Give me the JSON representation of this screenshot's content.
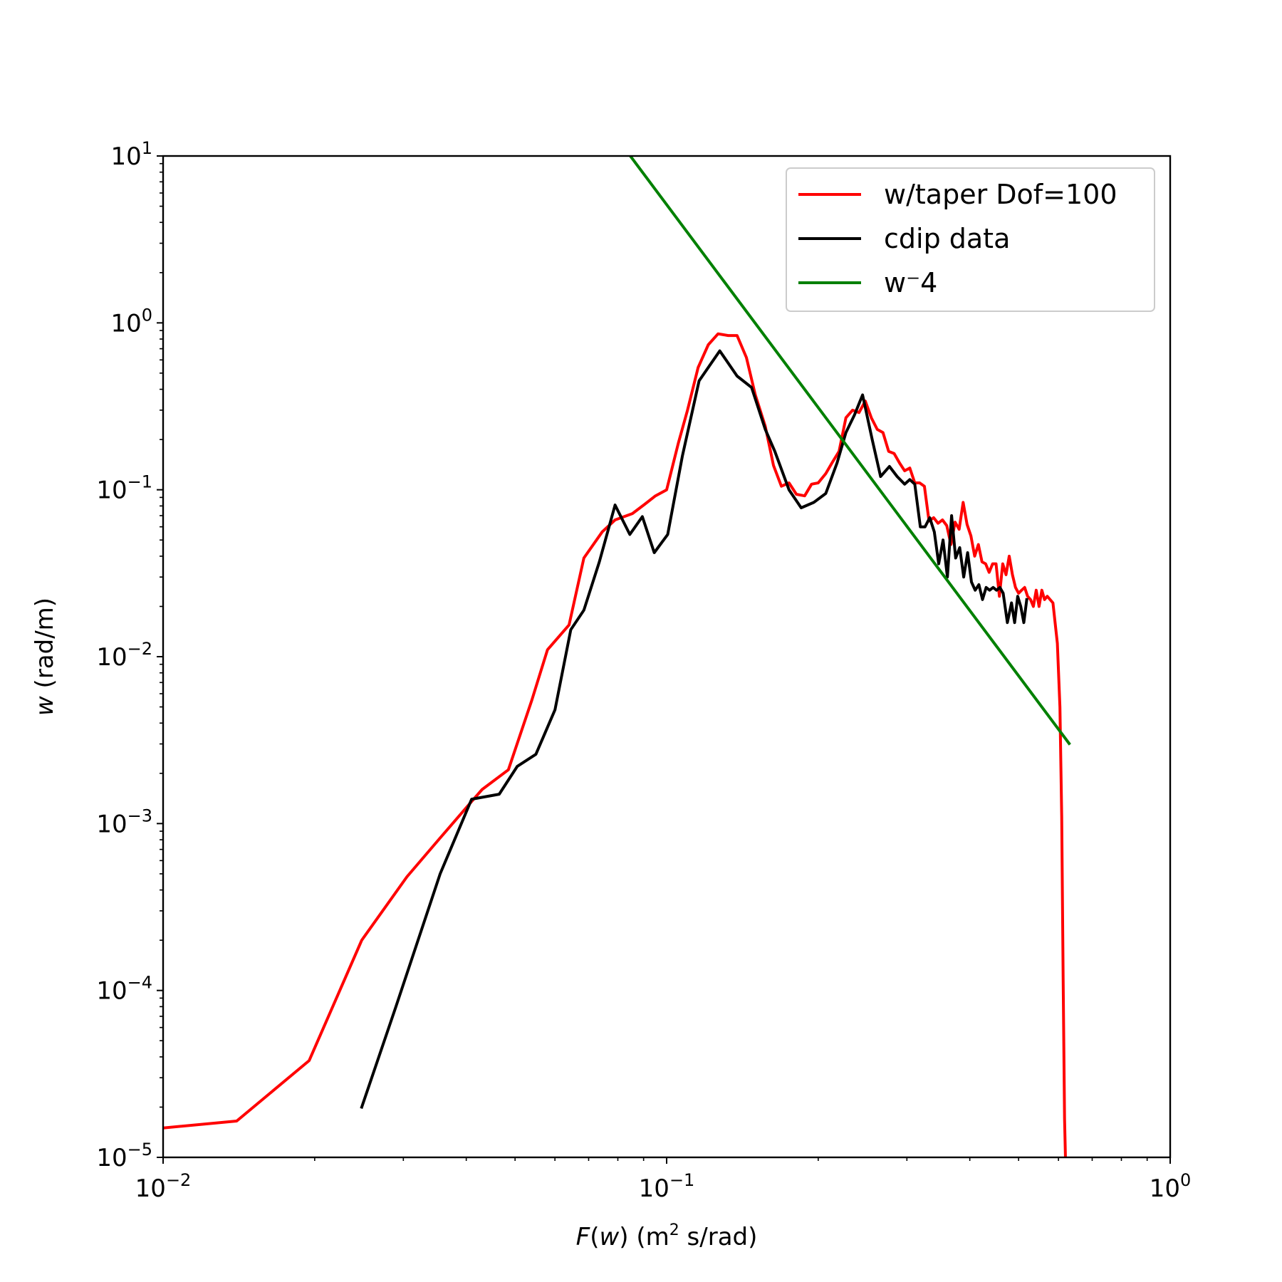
{
  "chart_data": {
    "type": "line",
    "xscale": "log",
    "yscale": "log",
    "xlim": [
      0.01,
      1
    ],
    "ylim": [
      1e-05,
      10
    ],
    "xticks": [
      {
        "value": 0.01,
        "base": "10",
        "exp": "−2"
      },
      {
        "value": 0.1,
        "base": "10",
        "exp": "−1"
      },
      {
        "value": 1,
        "base": "10",
        "exp": "0"
      }
    ],
    "yticks": [
      {
        "value": 1e-05,
        "base": "10",
        "exp": "−5"
      },
      {
        "value": 0.0001,
        "base": "10",
        "exp": "−4"
      },
      {
        "value": 0.001,
        "base": "10",
        "exp": "−3"
      },
      {
        "value": 0.01,
        "base": "10",
        "exp": "−2"
      },
      {
        "value": 0.1,
        "base": "10",
        "exp": "−1"
      },
      {
        "value": 1,
        "base": "10",
        "exp": "0"
      },
      {
        "value": 10,
        "base": "10",
        "exp": "1"
      }
    ],
    "xlabel": {
      "italic": "F",
      "paren": "(",
      "italic2": "w",
      "rest": ") (m",
      "sup": "2",
      "rest2": " s/rad)"
    },
    "ylabel": {
      "italic": "w",
      "rest": " (rad/m)"
    },
    "legend_position": "upper-right",
    "series": [
      {
        "name": "w/taper Dof=100",
        "color": "#ff0000",
        "points": [
          [
            0.01,
            1.5e-05
          ],
          [
            0.014,
            1.65e-05
          ],
          [
            0.0195,
            3.8e-05
          ],
          [
            0.0248,
            0.0002
          ],
          [
            0.0305,
            0.00048
          ],
          [
            0.0355,
            0.00082
          ],
          [
            0.0405,
            0.0013
          ],
          [
            0.043,
            0.0016
          ],
          [
            0.0485,
            0.0021
          ],
          [
            0.054,
            0.0055
          ],
          [
            0.058,
            0.011
          ],
          [
            0.064,
            0.0155
          ],
          [
            0.0685,
            0.039
          ],
          [
            0.0745,
            0.056
          ],
          [
            0.079,
            0.066
          ],
          [
            0.0855,
            0.072
          ],
          [
            0.0905,
            0.082
          ],
          [
            0.095,
            0.092
          ],
          [
            0.1,
            0.1
          ],
          [
            0.1055,
            0.19
          ],
          [
            0.11,
            0.3
          ],
          [
            0.1155,
            0.54
          ],
          [
            0.121,
            0.74
          ],
          [
            0.1265,
            0.86
          ],
          [
            0.1325,
            0.84
          ],
          [
            0.138,
            0.84
          ],
          [
            0.144,
            0.62
          ],
          [
            0.15,
            0.37
          ],
          [
            0.157,
            0.24
          ],
          [
            0.163,
            0.14
          ],
          [
            0.169,
            0.105
          ],
          [
            0.175,
            0.11
          ],
          [
            0.181,
            0.094
          ],
          [
            0.188,
            0.092
          ],
          [
            0.194,
            0.108
          ],
          [
            0.2,
            0.11
          ],
          [
            0.207,
            0.125
          ],
          [
            0.213,
            0.145
          ],
          [
            0.22,
            0.17
          ],
          [
            0.227,
            0.27
          ],
          [
            0.234,
            0.3
          ],
          [
            0.241,
            0.29
          ],
          [
            0.248,
            0.34
          ],
          [
            0.255,
            0.27
          ],
          [
            0.262,
            0.23
          ],
          [
            0.269,
            0.22
          ],
          [
            0.276,
            0.17
          ],
          [
            0.283,
            0.165
          ],
          [
            0.29,
            0.145
          ],
          [
            0.297,
            0.13
          ],
          [
            0.304,
            0.135
          ],
          [
            0.311,
            0.11
          ],
          [
            0.318,
            0.11
          ],
          [
            0.325,
            0.105
          ],
          [
            0.332,
            0.065
          ],
          [
            0.339,
            0.068
          ],
          [
            0.346,
            0.063
          ],
          [
            0.353,
            0.066
          ],
          [
            0.36,
            0.061
          ],
          [
            0.367,
            0.047
          ],
          [
            0.374,
            0.064
          ],
          [
            0.381,
            0.058
          ],
          [
            0.388,
            0.084
          ],
          [
            0.395,
            0.062
          ],
          [
            0.402,
            0.053
          ],
          [
            0.409,
            0.04
          ],
          [
            0.416,
            0.047
          ],
          [
            0.423,
            0.037
          ],
          [
            0.43,
            0.036
          ],
          [
            0.437,
            0.032
          ],
          [
            0.444,
            0.036
          ],
          [
            0.451,
            0.036
          ],
          [
            0.458,
            0.023
          ],
          [
            0.465,
            0.036
          ],
          [
            0.472,
            0.031
          ],
          [
            0.479,
            0.04
          ],
          [
            0.486,
            0.031
          ],
          [
            0.493,
            0.026
          ],
          [
            0.5,
            0.024
          ],
          [
            0.507,
            0.025
          ],
          [
            0.514,
            0.026
          ],
          [
            0.521,
            0.023
          ],
          [
            0.528,
            0.022
          ],
          [
            0.535,
            0.02
          ],
          [
            0.542,
            0.025
          ],
          [
            0.549,
            0.02
          ],
          [
            0.556,
            0.025
          ],
          [
            0.563,
            0.022
          ],
          [
            0.57,
            0.023
          ],
          [
            0.585,
            0.021
          ],
          [
            0.597,
            0.012
          ],
          [
            0.604,
            0.005
          ],
          [
            0.609,
            0.0011
          ],
          [
            0.613,
            0.00012
          ],
          [
            0.617,
            1.7e-05
          ],
          [
            0.62,
            9e-06
          ]
        ]
      },
      {
        "name": "cdip data",
        "color": "#000000",
        "points": [
          [
            0.0248,
            2e-05
          ],
          [
            0.029,
            8e-05
          ],
          [
            0.0355,
            0.0005
          ],
          [
            0.041,
            0.0014
          ],
          [
            0.0465,
            0.0015
          ],
          [
            0.0505,
            0.0022
          ],
          [
            0.055,
            0.0026
          ],
          [
            0.06,
            0.0048
          ],
          [
            0.0645,
            0.0145
          ],
          [
            0.0685,
            0.019
          ],
          [
            0.0735,
            0.037
          ],
          [
            0.079,
            0.081
          ],
          [
            0.0845,
            0.054
          ],
          [
            0.0895,
            0.069
          ],
          [
            0.0945,
            0.042
          ],
          [
            0.1005,
            0.054
          ],
          [
            0.1075,
            0.16
          ],
          [
            0.116,
            0.45
          ],
          [
            0.1275,
            0.68
          ],
          [
            0.138,
            0.48
          ],
          [
            0.1475,
            0.41
          ],
          [
            0.157,
            0.23
          ],
          [
            0.164,
            0.17
          ],
          [
            0.175,
            0.1
          ],
          [
            0.185,
            0.078
          ],
          [
            0.196,
            0.084
          ],
          [
            0.207,
            0.095
          ],
          [
            0.218,
            0.145
          ],
          [
            0.227,
            0.22
          ],
          [
            0.236,
            0.28
          ],
          [
            0.245,
            0.37
          ],
          [
            0.256,
            0.2
          ],
          [
            0.266,
            0.12
          ],
          [
            0.277,
            0.138
          ],
          [
            0.287,
            0.12
          ],
          [
            0.297,
            0.108
          ],
          [
            0.304,
            0.115
          ],
          [
            0.311,
            0.108
          ],
          [
            0.319,
            0.06
          ],
          [
            0.326,
            0.06
          ],
          [
            0.333,
            0.068
          ],
          [
            0.34,
            0.056
          ],
          [
            0.347,
            0.036
          ],
          [
            0.354,
            0.05
          ],
          [
            0.361,
            0.03
          ],
          [
            0.368,
            0.07
          ],
          [
            0.375,
            0.039
          ],
          [
            0.382,
            0.045
          ],
          [
            0.389,
            0.03
          ],
          [
            0.396,
            0.042
          ],
          [
            0.403,
            0.028
          ],
          [
            0.41,
            0.025
          ],
          [
            0.417,
            0.027
          ],
          [
            0.424,
            0.022
          ],
          [
            0.431,
            0.026
          ],
          [
            0.438,
            0.025
          ],
          [
            0.445,
            0.026
          ],
          [
            0.452,
            0.025
          ],
          [
            0.459,
            0.026
          ],
          [
            0.466,
            0.024
          ],
          [
            0.475,
            0.016
          ],
          [
            0.484,
            0.021
          ],
          [
            0.491,
            0.016
          ],
          [
            0.498,
            0.023
          ],
          [
            0.505,
            0.02
          ],
          [
            0.512,
            0.016
          ],
          [
            0.519,
            0.022
          ]
        ]
      },
      {
        "name": "w⁻4",
        "color": "#008000",
        "points": [
          [
            0.0847,
            10.0
          ],
          [
            0.63,
            0.00302
          ]
        ]
      }
    ]
  }
}
